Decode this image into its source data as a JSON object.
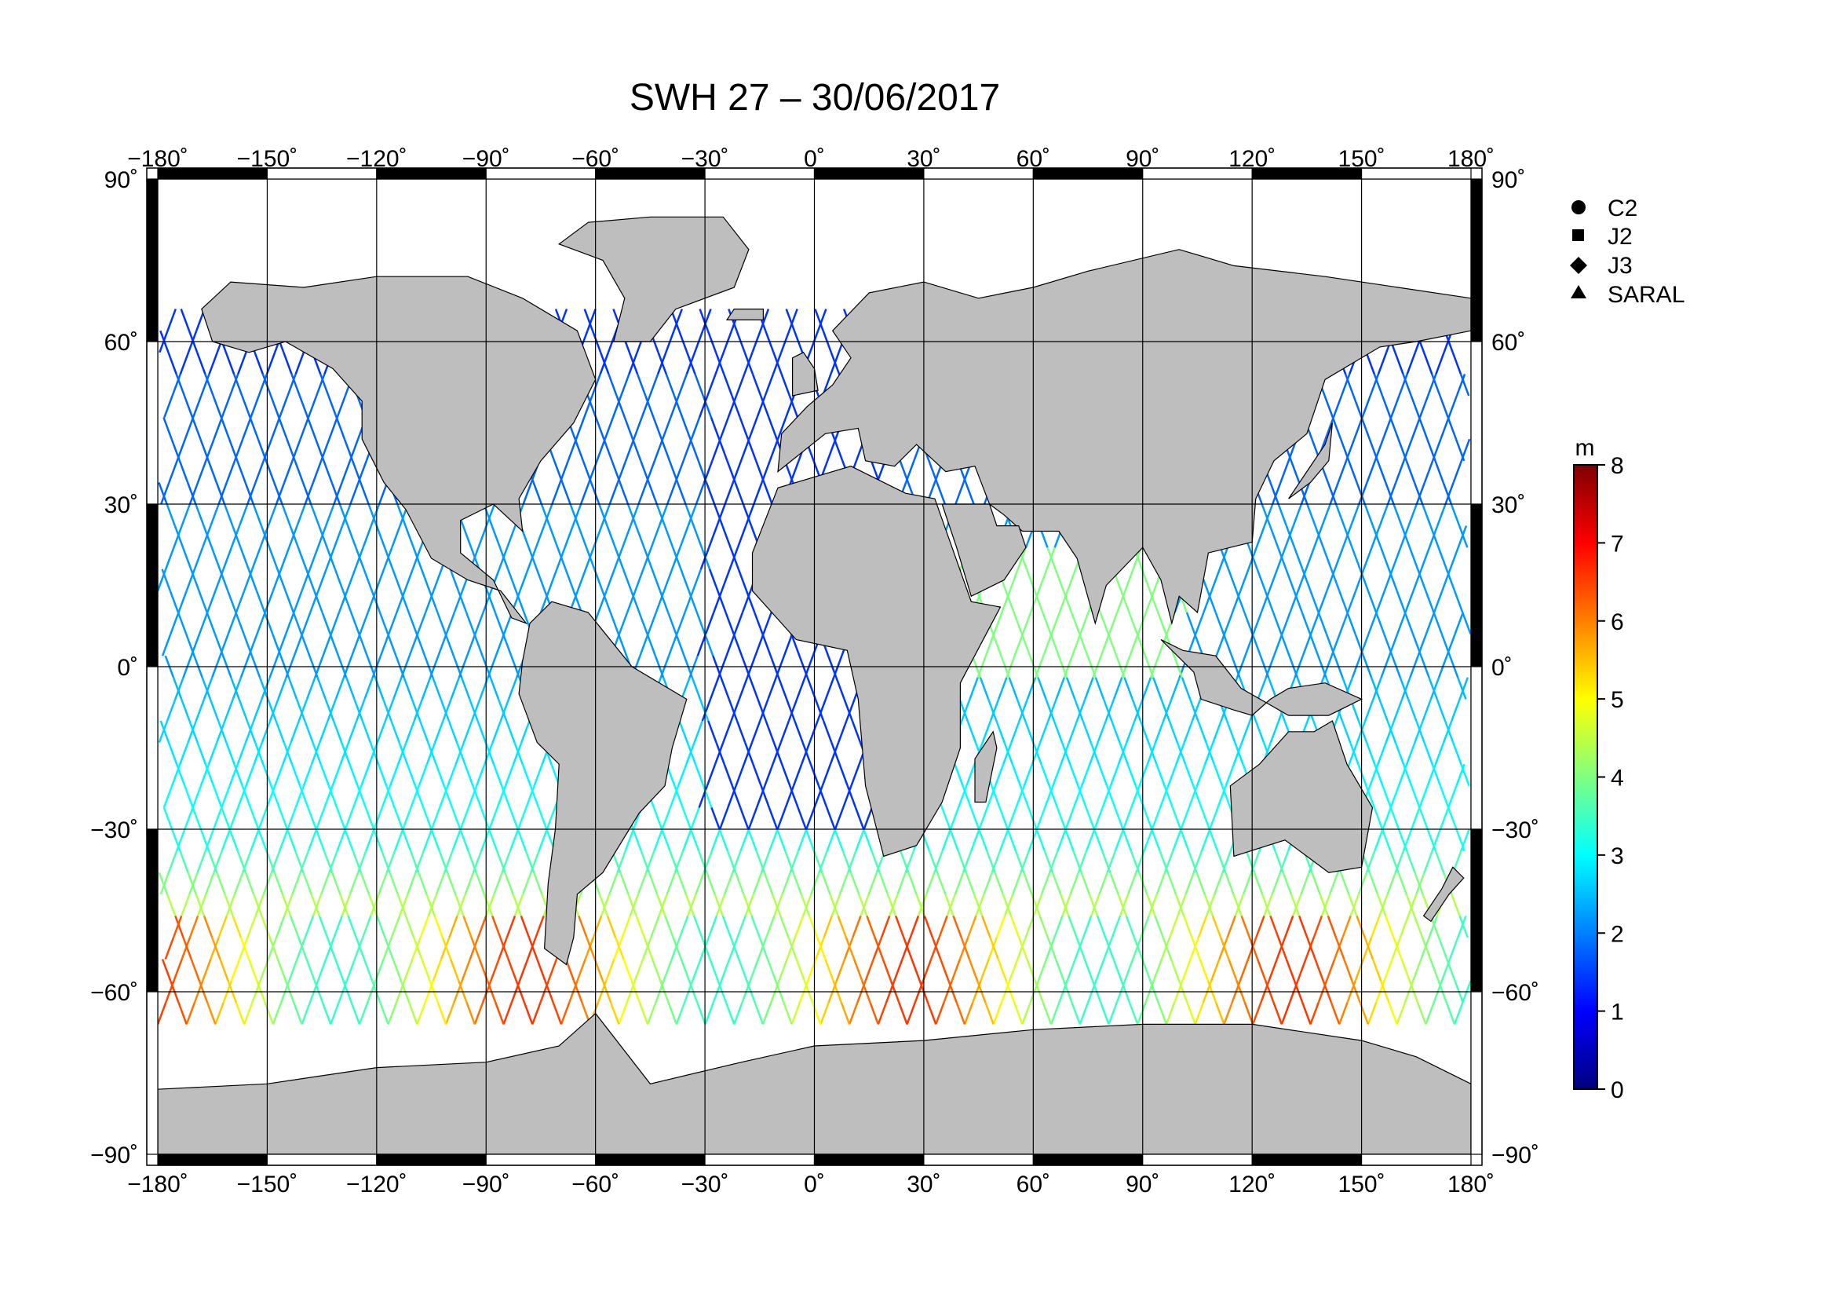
{
  "title": "SWH 27 – 30/06/2017",
  "colors": {
    "land": "#bebebe",
    "ocean": "#ffffff",
    "grid": "#000000",
    "frame_dark": "#000000"
  },
  "axes": {
    "lon_ticks": [
      {
        "value": -180,
        "label": "−180˚"
      },
      {
        "value": -150,
        "label": "−150˚"
      },
      {
        "value": -120,
        "label": "−120˚"
      },
      {
        "value": -90,
        "label": "−90˚"
      },
      {
        "value": -60,
        "label": "−60˚"
      },
      {
        "value": -30,
        "label": "−30˚"
      },
      {
        "value": 0,
        "label": "0˚"
      },
      {
        "value": 30,
        "label": "30˚"
      },
      {
        "value": 60,
        "label": "60˚"
      },
      {
        "value": 90,
        "label": "90˚"
      },
      {
        "value": 120,
        "label": "120˚"
      },
      {
        "value": 150,
        "label": "150˚"
      },
      {
        "value": 180,
        "label": "180˚"
      }
    ],
    "lat_ticks": [
      {
        "value": 90,
        "label": "90˚"
      },
      {
        "value": 60,
        "label": "60˚"
      },
      {
        "value": 30,
        "label": "30˚"
      },
      {
        "value": 0,
        "label": "0˚"
      },
      {
        "value": -30,
        "label": "−30˚"
      },
      {
        "value": -60,
        "label": "−60˚"
      },
      {
        "value": -90,
        "label": "−90˚"
      }
    ],
    "lon_range": [
      -180,
      180
    ],
    "lat_range": [
      -90,
      90
    ]
  },
  "legend": {
    "items": [
      {
        "label": "C2",
        "marker": "circle-icon"
      },
      {
        "label": "J2",
        "marker": "square-icon"
      },
      {
        "label": "J3",
        "marker": "diamond-icon"
      },
      {
        "label": "SARAL",
        "marker": "triangle-icon"
      }
    ]
  },
  "colorbar": {
    "unit": "m",
    "min": 0,
    "max": 8,
    "ticks": [
      {
        "value": 0,
        "label": "0"
      },
      {
        "value": 1,
        "label": "1"
      },
      {
        "value": 2,
        "label": "2"
      },
      {
        "value": 3,
        "label": "3"
      },
      {
        "value": 4,
        "label": "4"
      },
      {
        "value": 5,
        "label": "5"
      },
      {
        "value": 6,
        "label": "6"
      },
      {
        "value": 7,
        "label": "7"
      },
      {
        "value": 8,
        "label": "8"
      }
    ],
    "stops": [
      "#00007f",
      "#0000ff",
      "#0080ff",
      "#00ffff",
      "#80ff80",
      "#ffff00",
      "#ff8000",
      "#ff0000",
      "#7f0000"
    ]
  }
}
